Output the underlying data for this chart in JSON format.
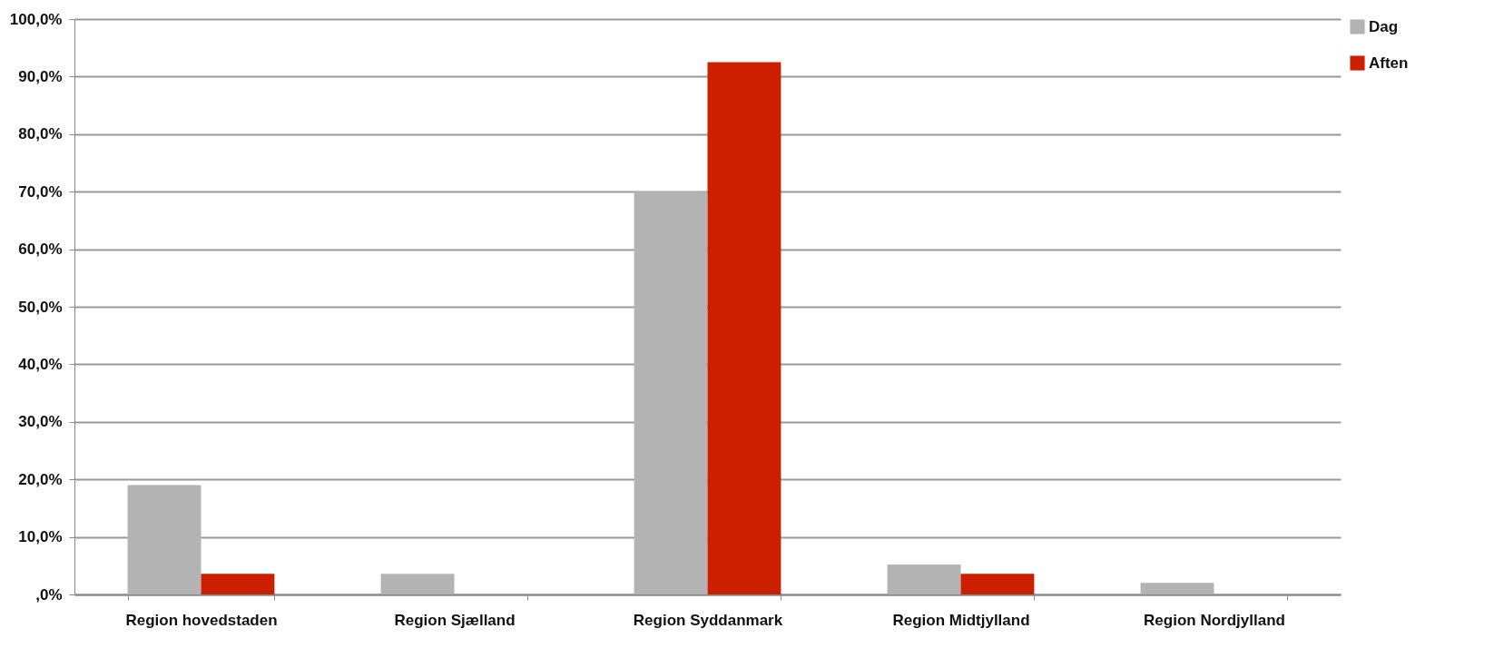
{
  "chart_data": {
    "type": "bar",
    "categories": [
      "Region hovedstaden",
      "Region Sjælland",
      "Region Syddanmark",
      "Region Midtjylland",
      "Region Nordjylland"
    ],
    "series": [
      {
        "name": "Dag",
        "color": "#b3b3b3",
        "values": [
          19.0,
          3.6,
          70.0,
          5.2,
          2.0
        ]
      },
      {
        "name": "Aften",
        "color": "#cc1f00",
        "values": [
          3.6,
          null,
          92.5,
          3.6,
          null
        ]
      }
    ],
    "ylim": [
      0,
      100
    ],
    "yticks": [
      {
        "value": 0,
        "label": ",0%"
      },
      {
        "value": 10,
        "label": "10,0%"
      },
      {
        "value": 20,
        "label": "20,0%"
      },
      {
        "value": 30,
        "label": "30,0%"
      },
      {
        "value": 40,
        "label": "40,0%"
      },
      {
        "value": 50,
        "label": "50,0%"
      },
      {
        "value": 60,
        "label": "60,0%"
      },
      {
        "value": 70,
        "label": "70,0%"
      },
      {
        "value": 80,
        "label": "80,0%"
      },
      {
        "value": 90,
        "label": "90,0%"
      },
      {
        "value": 100,
        "label": "100,0%"
      }
    ],
    "grid": "y",
    "legend": "right"
  }
}
